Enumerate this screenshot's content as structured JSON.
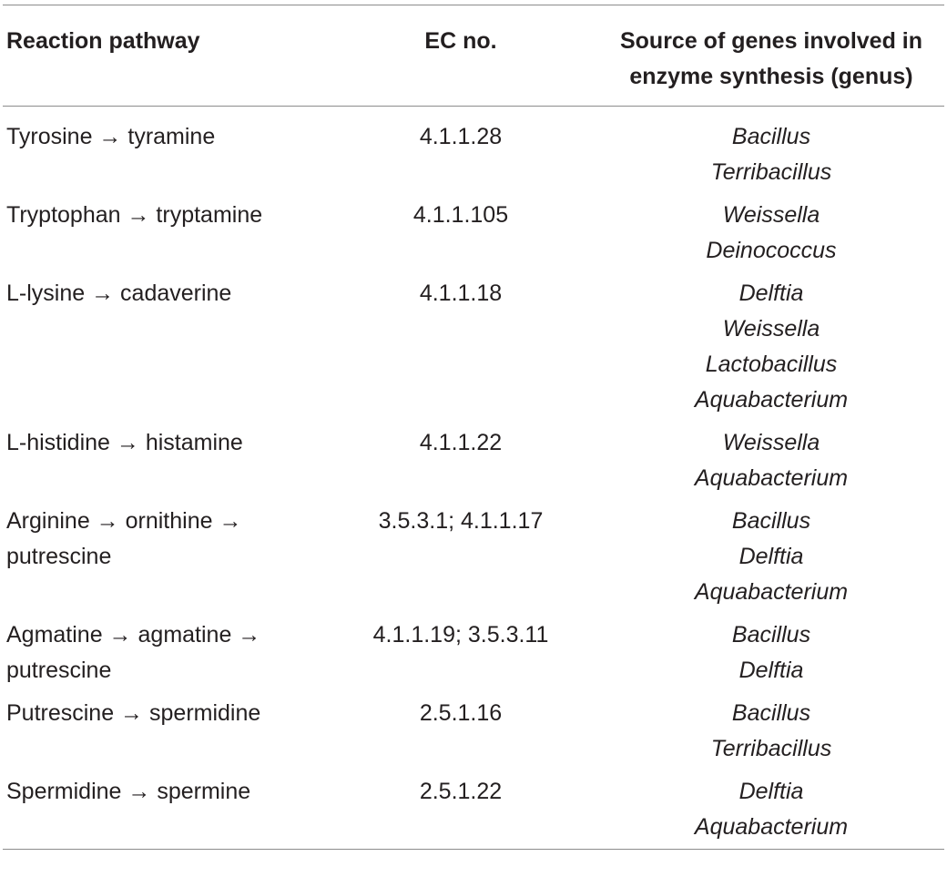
{
  "table": {
    "headers": {
      "pathway": "Reaction pathway",
      "ec": "EC no.",
      "source_line1": "Source of genes involved in",
      "source_line2": "enzyme synthesis (genus)"
    },
    "rows": [
      {
        "pathway": "Tyrosine → tyramine",
        "ec": "4.1.1.28",
        "genera": [
          "Bacillus",
          "Terribacillus"
        ]
      },
      {
        "pathway": "Tryptophan → tryptamine",
        "ec": "4.1.1.105",
        "genera": [
          "Weissella",
          "Deinococcus"
        ]
      },
      {
        "pathway": "L-lysine → cadaverine",
        "ec": "4.1.1.18",
        "genera": [
          "Delftia",
          "Weissella",
          "Lactobacillus",
          "Aquabacterium"
        ]
      },
      {
        "pathway": "L-histidine → histamine",
        "ec": "4.1.1.22",
        "genera": [
          "Weissella",
          "Aquabacterium"
        ]
      },
      {
        "pathway": "Arginine → ornithine →\nputrescine",
        "ec": "3.5.3.1; 4.1.1.17",
        "genera": [
          "Bacillus",
          "Delftia",
          "Aquabacterium"
        ]
      },
      {
        "pathway": "Agmatine → agmatine →\nputrescine",
        "ec": "4.1.1.19; 3.5.3.11",
        "genera": [
          "Bacillus",
          "Delftia"
        ]
      },
      {
        "pathway": "Putrescine → spermidine",
        "ec": "2.5.1.16",
        "genera": [
          "Bacillus",
          "Terribacillus"
        ]
      },
      {
        "pathway": "Spermidine → spermine",
        "ec": "2.5.1.22",
        "genera": [
          "Delftia",
          "Aquabacterium"
        ]
      }
    ]
  }
}
